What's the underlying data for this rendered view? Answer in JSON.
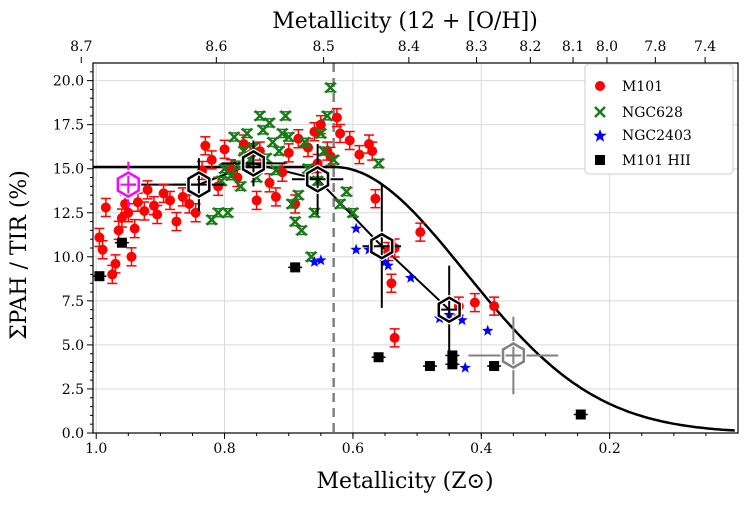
{
  "chart_data": {
    "type": "scatter",
    "xlabel": "Metallicity (Z⊙)",
    "ylabel": "ΣPAH / TIR (%)",
    "top_xlabel": "Metallicity (12 + [O/H])",
    "xlim": [
      1.005,
      0.0
    ],
    "ylim": [
      0,
      21
    ],
    "x_ticks": [
      1.0,
      0.8,
      0.6,
      0.4,
      0.2
    ],
    "x_tick_labels": [
      "1.0",
      "0.8",
      "0.6",
      "0.4",
      "0.2"
    ],
    "y_ticks": [
      0,
      2.5,
      5,
      7.5,
      10,
      12.5,
      15,
      17.5,
      20
    ],
    "y_tick_labels": [
      "0.0",
      "2.5",
      "5.0",
      "7.5",
      "10.0",
      "12.5",
      "15.0",
      "17.5",
      "20.0"
    ],
    "top_ticks": [
      8.7,
      8.6,
      8.5,
      8.4,
      8.3,
      8.2,
      8.1,
      8.0,
      7.8,
      7.4
    ],
    "top_tick_labels": [
      "8.7",
      "8.6",
      "8.5",
      "8.4",
      "8.3",
      "8.2",
      "8.1",
      "8.0",
      "7.8",
      "7.4"
    ],
    "grid": true,
    "legend_position": "top-right",
    "vertical_line_x": 0.63,
    "series": [
      {
        "name": "M101",
        "marker": "circle",
        "color": "#ff0000",
        "points": [
          [
            0.995,
            11.1
          ],
          [
            0.99,
            10.4
          ],
          [
            0.985,
            12.8
          ],
          [
            0.975,
            9.0
          ],
          [
            0.97,
            9.6
          ],
          [
            0.965,
            11.5
          ],
          [
            0.96,
            12.2
          ],
          [
            0.955,
            13.0
          ],
          [
            0.95,
            12.5
          ],
          [
            0.945,
            10.0
          ],
          [
            0.94,
            11.6
          ],
          [
            0.935,
            13.1
          ],
          [
            0.925,
            12.6
          ],
          [
            0.92,
            13.8
          ],
          [
            0.91,
            12.9
          ],
          [
            0.905,
            12.4
          ],
          [
            0.895,
            13.6
          ],
          [
            0.885,
            13.2
          ],
          [
            0.875,
            12.0
          ],
          [
            0.865,
            13.4
          ],
          [
            0.855,
            13.0
          ],
          [
            0.845,
            12.5
          ],
          [
            0.835,
            14.9
          ],
          [
            0.83,
            16.3
          ],
          [
            0.82,
            15.5
          ],
          [
            0.81,
            14.0
          ],
          [
            0.8,
            16.1
          ],
          [
            0.79,
            15.0
          ],
          [
            0.78,
            14.5
          ],
          [
            0.77,
            16.4
          ],
          [
            0.76,
            15.8
          ],
          [
            0.75,
            13.2
          ],
          [
            0.745,
            16.0
          ],
          [
            0.73,
            14.2
          ],
          [
            0.72,
            13.4
          ],
          [
            0.71,
            14.8
          ],
          [
            0.7,
            15.9
          ],
          [
            0.69,
            13.0
          ],
          [
            0.685,
            16.7
          ],
          [
            0.67,
            16.2
          ],
          [
            0.66,
            17.1
          ],
          [
            0.655,
            15.3
          ],
          [
            0.65,
            17.5
          ],
          [
            0.64,
            16.0
          ],
          [
            0.635,
            15.7
          ],
          [
            0.625,
            17.9
          ],
          [
            0.62,
            17.0
          ],
          [
            0.605,
            16.6
          ],
          [
            0.59,
            15.8
          ],
          [
            0.575,
            16.4
          ],
          [
            0.57,
            16.0
          ],
          [
            0.565,
            13.3
          ],
          [
            0.545,
            10.3
          ],
          [
            0.54,
            8.5
          ],
          [
            0.535,
            10.5
          ],
          [
            0.495,
            11.4
          ],
          [
            0.435,
            7.2
          ],
          [
            0.41,
            7.4
          ],
          [
            0.38,
            7.2
          ],
          [
            0.535,
            5.4
          ]
        ]
      },
      {
        "name": "NGC628",
        "marker": "x",
        "color": "#1a7a1a",
        "points": [
          [
            0.82,
            12.1
          ],
          [
            0.81,
            12.5
          ],
          [
            0.805,
            14.3
          ],
          [
            0.8,
            15.0
          ],
          [
            0.795,
            12.5
          ],
          [
            0.79,
            14.6
          ],
          [
            0.785,
            16.8
          ],
          [
            0.78,
            15.2
          ],
          [
            0.775,
            14.0
          ],
          [
            0.77,
            16.0
          ],
          [
            0.765,
            17.0
          ],
          [
            0.76,
            15.5
          ],
          [
            0.755,
            16.2
          ],
          [
            0.75,
            14.5
          ],
          [
            0.745,
            18.0
          ],
          [
            0.74,
            17.2
          ],
          [
            0.735,
            15.6
          ],
          [
            0.73,
            17.6
          ],
          [
            0.725,
            16.5
          ],
          [
            0.72,
            14.9
          ],
          [
            0.715,
            16.0
          ],
          [
            0.71,
            17.0
          ],
          [
            0.705,
            18.0
          ],
          [
            0.7,
            16.8
          ],
          [
            0.695,
            13.0
          ],
          [
            0.69,
            12.0
          ],
          [
            0.685,
            13.5
          ],
          [
            0.68,
            11.5
          ],
          [
            0.675,
            16.5
          ],
          [
            0.67,
            15.0
          ],
          [
            0.665,
            10.0
          ],
          [
            0.66,
            12.5
          ],
          [
            0.655,
            14.3
          ],
          [
            0.65,
            17.0
          ],
          [
            0.645,
            16.0
          ],
          [
            0.64,
            18.0
          ],
          [
            0.635,
            19.6
          ],
          [
            0.63,
            15.5
          ],
          [
            0.62,
            13.0
          ],
          [
            0.61,
            13.7
          ],
          [
            0.6,
            12.5
          ],
          [
            0.56,
            15.3
          ]
        ]
      },
      {
        "name": "NGC2403",
        "marker": "star",
        "color": "#0000ff",
        "points": [
          [
            0.66,
            9.7
          ],
          [
            0.65,
            9.8
          ],
          [
            0.595,
            11.6
          ],
          [
            0.595,
            10.4
          ],
          [
            0.575,
            10.4
          ],
          [
            0.55,
            9.7
          ],
          [
            0.545,
            9.5
          ],
          [
            0.51,
            8.8
          ],
          [
            0.465,
            6.5
          ],
          [
            0.45,
            6.7
          ],
          [
            0.43,
            6.4
          ],
          [
            0.425,
            3.7
          ],
          [
            0.39,
            5.8
          ]
        ]
      },
      {
        "name": "M101 HII",
        "marker": "square",
        "color": "#000000",
        "points": [
          [
            0.995,
            8.9
          ],
          [
            0.96,
            10.8
          ],
          [
            0.69,
            9.4
          ],
          [
            0.56,
            4.3
          ],
          [
            0.48,
            3.8
          ],
          [
            0.445,
            4.4
          ],
          [
            0.445,
            3.9
          ],
          [
            0.38,
            3.8
          ],
          [
            0.245,
            1.05
          ]
        ]
      }
    ],
    "binned_points": [
      [
        0.95,
        14.1
      ],
      [
        0.84,
        14.1
      ],
      [
        0.755,
        15.3
      ],
      [
        0.655,
        14.4
      ],
      [
        0.555,
        10.6
      ],
      [
        0.45,
        7.0
      ],
      [
        0.35,
        4.4
      ]
    ],
    "model_curve": {
      "plateau": 15.1,
      "knee": 0.63
    }
  }
}
